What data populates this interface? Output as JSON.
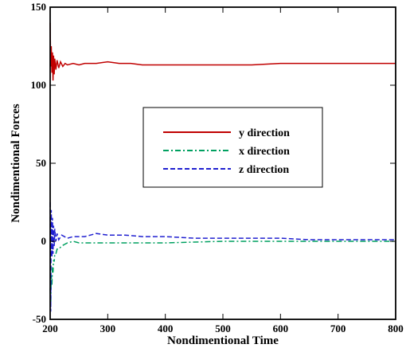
{
  "chart_data": {
    "type": "line",
    "title": "",
    "xlabel": "Nondimentional Time",
    "ylabel": "Nondimentional Forces",
    "xlim": [
      200,
      800
    ],
    "ylim": [
      -50,
      150
    ],
    "xticks": [
      200,
      300,
      400,
      500,
      600,
      700,
      800
    ],
    "yticks": [
      -50,
      0,
      50,
      100,
      150
    ],
    "grid": false,
    "legend_position": "center",
    "series": [
      {
        "name": "y direction",
        "color": "#c00000",
        "dash": "solid",
        "x": [
          200,
          201,
          202,
          203,
          204,
          205,
          206,
          207,
          208,
          210,
          212,
          215,
          218,
          222,
          226,
          230,
          240,
          250,
          260,
          280,
          300,
          320,
          340,
          360,
          380,
          400,
          430,
          460,
          500,
          550,
          600,
          650,
          700,
          750,
          800
        ],
        "y": [
          140,
          112,
          125,
          108,
          121,
          103,
          119,
          107,
          117,
          110,
          116,
          111,
          115,
          112,
          114,
          113,
          114,
          113,
          114,
          114,
          115,
          114,
          114,
          113,
          113,
          113,
          113,
          113,
          113,
          113,
          114,
          114,
          114,
          114,
          114
        ]
      },
      {
        "name": "x direction",
        "color": "#00a060",
        "dash": "dashdot",
        "x": [
          200,
          201,
          202,
          203,
          204,
          205,
          206,
          207,
          208,
          210,
          212,
          215,
          220,
          225,
          230,
          240,
          250,
          270,
          300,
          350,
          400,
          500,
          600,
          700,
          800
        ],
        "y": [
          -30,
          -42,
          -22,
          -28,
          -16,
          -20,
          -12,
          -13,
          -8,
          -8,
          -5,
          -5,
          -3,
          -2,
          -1,
          0,
          -1,
          -1,
          -1,
          -1,
          -1,
          0,
          0,
          0,
          0
        ]
      },
      {
        "name": "z direction",
        "color": "#2020d0",
        "dash": "dashed",
        "x": [
          200,
          201,
          202,
          203,
          204,
          205,
          206,
          207,
          208,
          210,
          212,
          215,
          220,
          230,
          240,
          250,
          260,
          270,
          280,
          300,
          330,
          360,
          400,
          450,
          500,
          550,
          600,
          650,
          700,
          750,
          800
        ],
        "y": [
          25,
          -45,
          20,
          -10,
          15,
          -8,
          10,
          -3,
          8,
          0,
          5,
          1,
          4,
          2,
          3,
          3,
          3,
          4,
          5,
          4,
          4,
          3,
          3,
          2,
          2,
          2,
          2,
          1,
          1,
          1,
          1
        ]
      }
    ]
  }
}
